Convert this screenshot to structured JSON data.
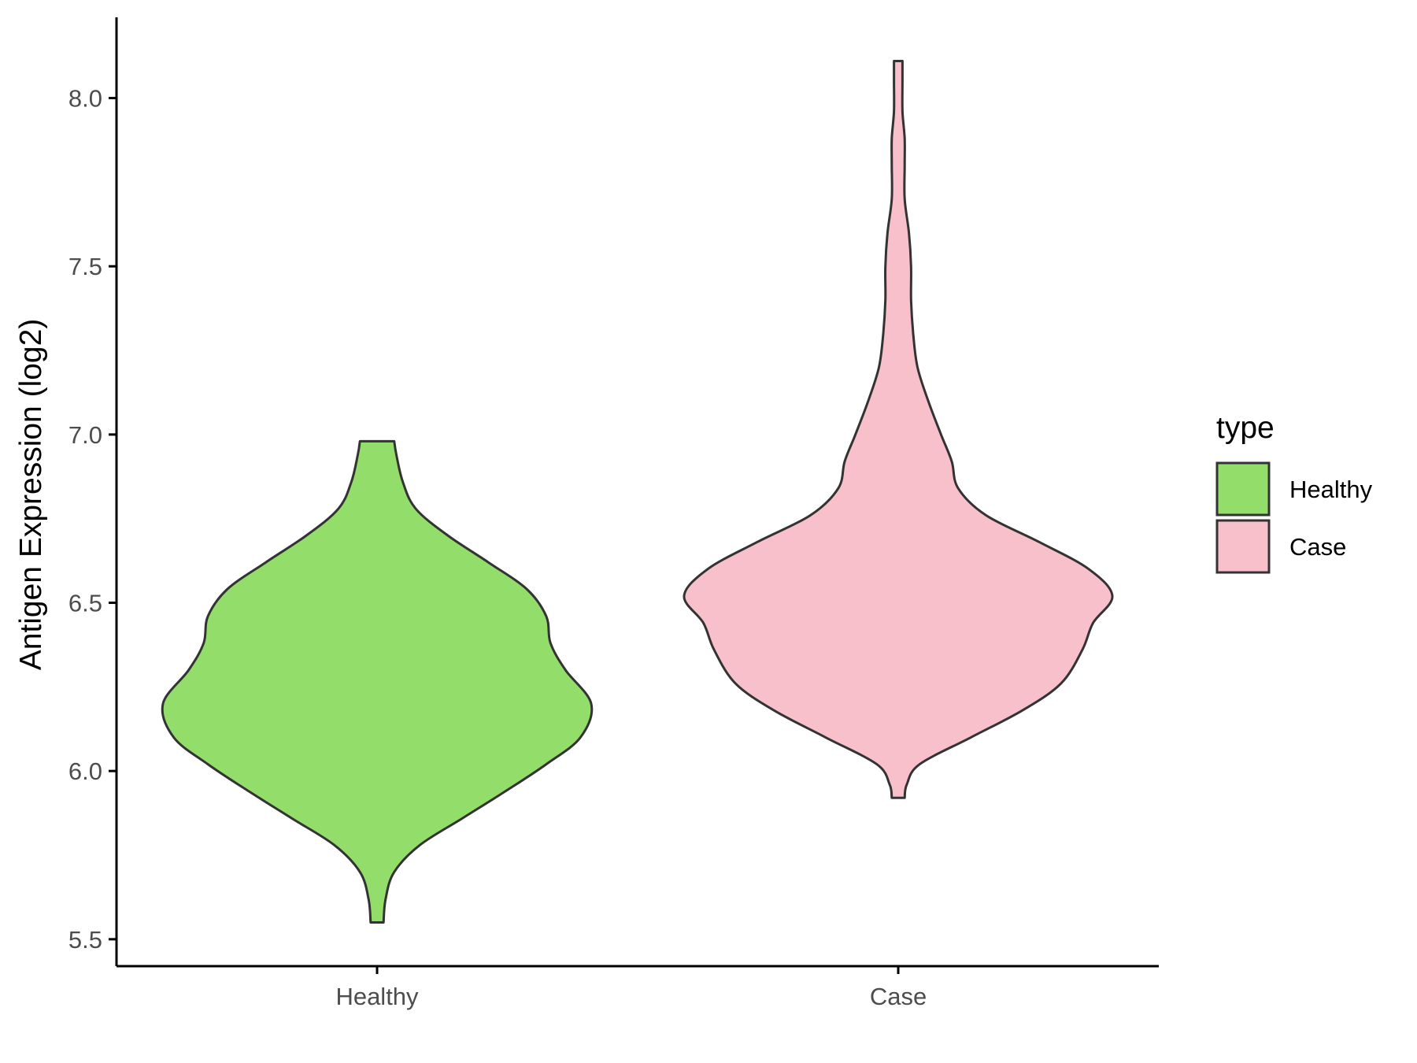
{
  "chart_data": {
    "type": "violin",
    "title": "",
    "xlabel": "",
    "ylabel": "Antigen Expression (log2)",
    "ylim": [
      5.42,
      8.24
    ],
    "yticks": [
      "5.5",
      "6.0",
      "6.5",
      "7.0",
      "7.5",
      "8.0"
    ],
    "categories": [
      "Healthy",
      "Case"
    ],
    "grid": false,
    "legend": {
      "title": "type",
      "position": "right",
      "entries": [
        {
          "label": "Healthy",
          "color": "#93dd6a"
        },
        {
          "label": "Case",
          "color": "#f7c0cb"
        }
      ]
    },
    "series": [
      {
        "name": "Healthy",
        "color": "#93dd6a",
        "min": 5.55,
        "max": 6.98,
        "density_profile": [
          [
            5.55,
            0.03
          ],
          [
            5.62,
            0.04
          ],
          [
            5.7,
            0.08
          ],
          [
            5.78,
            0.2
          ],
          [
            5.86,
            0.4
          ],
          [
            5.94,
            0.6
          ],
          [
            6.02,
            0.79
          ],
          [
            6.1,
            0.95
          ],
          [
            6.2,
            1.0
          ],
          [
            6.3,
            0.88
          ],
          [
            6.38,
            0.81
          ],
          [
            6.46,
            0.79
          ],
          [
            6.54,
            0.7
          ],
          [
            6.62,
            0.52
          ],
          [
            6.7,
            0.33
          ],
          [
            6.78,
            0.18
          ],
          [
            6.86,
            0.12
          ],
          [
            6.94,
            0.09
          ],
          [
            6.98,
            0.08
          ]
        ]
      },
      {
        "name": "Case",
        "color": "#f7c0cb",
        "min": 5.92,
        "max": 8.11,
        "density_profile": [
          [
            5.92,
            0.03
          ],
          [
            5.96,
            0.04
          ],
          [
            6.02,
            0.1
          ],
          [
            6.1,
            0.34
          ],
          [
            6.18,
            0.58
          ],
          [
            6.26,
            0.76
          ],
          [
            6.36,
            0.86
          ],
          [
            6.44,
            0.91
          ],
          [
            6.52,
            1.0
          ],
          [
            6.6,
            0.89
          ],
          [
            6.68,
            0.66
          ],
          [
            6.76,
            0.41
          ],
          [
            6.84,
            0.28
          ],
          [
            6.92,
            0.25
          ],
          [
            7.0,
            0.2
          ],
          [
            7.1,
            0.14
          ],
          [
            7.2,
            0.09
          ],
          [
            7.3,
            0.07
          ],
          [
            7.4,
            0.06
          ],
          [
            7.5,
            0.06
          ],
          [
            7.6,
            0.05
          ],
          [
            7.7,
            0.03
          ],
          [
            7.8,
            0.03
          ],
          [
            7.88,
            0.03
          ],
          [
            7.96,
            0.02
          ],
          [
            8.05,
            0.02
          ],
          [
            8.11,
            0.02
          ]
        ]
      }
    ]
  }
}
